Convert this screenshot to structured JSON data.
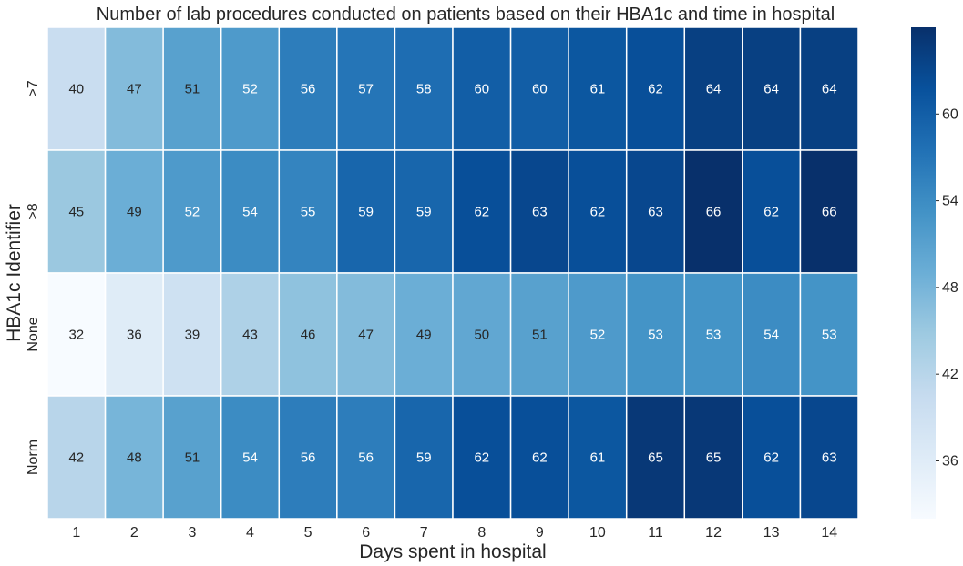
{
  "chart_data": {
    "type": "heatmap",
    "title": "Number of lab procedures conducted on patients based on their HBA1c and time in hospital",
    "xlabel": "Days spent in hospital",
    "ylabel": "HBA1c Identifier",
    "x_categories": [
      "1",
      "2",
      "3",
      "4",
      "5",
      "6",
      "7",
      "8",
      "9",
      "10",
      "11",
      "12",
      "13",
      "14"
    ],
    "y_categories": [
      ">7",
      ">8",
      "None",
      "Norm"
    ],
    "values": [
      [
        40,
        47,
        51,
        52,
        56,
        57,
        58,
        60,
        60,
        61,
        62,
        64,
        64,
        64
      ],
      [
        45,
        49,
        52,
        54,
        55,
        59,
        59,
        62,
        63,
        62,
        63,
        66,
        62,
        66
      ],
      [
        32,
        36,
        39,
        43,
        46,
        47,
        49,
        50,
        51,
        52,
        53,
        53,
        54,
        53
      ],
      [
        42,
        48,
        51,
        54,
        56,
        56,
        59,
        62,
        62,
        61,
        65,
        65,
        62,
        63
      ]
    ],
    "colormap": "Blues",
    "colorbar": {
      "min": 32,
      "max": 66,
      "ticks": [
        36,
        42,
        48,
        54,
        60
      ]
    },
    "annotated": true,
    "grid": false
  }
}
